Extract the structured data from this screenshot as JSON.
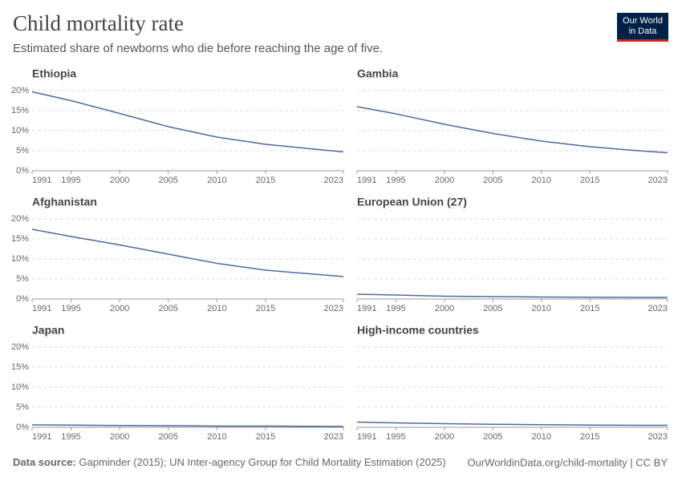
{
  "title": "Child mortality rate",
  "subtitle": "Estimated share of newborns who die before reaching the age of five.",
  "logo": {
    "line1": "Our World",
    "line2": "in Data"
  },
  "source_label": "Data source:",
  "source": "Gapminder (2015); UN Inter-agency Group for Child Mortality Estimation (2025)",
  "url": "OurWorldinData.org/child-mortality | CC BY",
  "chart_data": [
    {
      "type": "line",
      "title": "Ethiopia",
      "color": "#4c6a9c",
      "grid": true,
      "x": [
        1991,
        1995,
        2000,
        2005,
        2010,
        2015,
        2020,
        2023
      ],
      "values": [
        19.7,
        17.5,
        14.3,
        11.0,
        8.4,
        6.6,
        5.4,
        4.7
      ],
      "xlim": [
        1991,
        2023
      ],
      "xticks": [
        1991,
        1995,
        2000,
        2005,
        2010,
        2015,
        2023
      ],
      "ylim": [
        0,
        20
      ],
      "yticks": [
        {
          "value": 0,
          "label": "0%"
        },
        {
          "value": 5,
          "label": "5%"
        },
        {
          "value": 10,
          "label": "10%"
        },
        {
          "value": 15,
          "label": "15%"
        },
        {
          "value": 20,
          "label": "20%"
        }
      ]
    },
    {
      "type": "line",
      "title": "Gambia",
      "color": "#4c6a9c",
      "grid": true,
      "x": [
        1991,
        1995,
        2000,
        2005,
        2010,
        2015,
        2020,
        2023
      ],
      "values": [
        16.0,
        14.2,
        11.6,
        9.3,
        7.4,
        6.0,
        5.0,
        4.5
      ],
      "xlim": [
        1991,
        2023
      ],
      "xticks": [
        1991,
        1995,
        2000,
        2005,
        2010,
        2015,
        2023
      ],
      "ylim": [
        0,
        20
      ],
      "yticks": [
        0,
        5,
        10,
        15,
        20
      ]
    },
    {
      "type": "line",
      "title": "Afghanistan",
      "color": "#4c6a9c",
      "grid": true,
      "x": [
        1991,
        1995,
        2000,
        2005,
        2010,
        2015,
        2020,
        2023
      ],
      "values": [
        17.4,
        15.6,
        13.5,
        11.2,
        8.9,
        7.2,
        6.2,
        5.6
      ],
      "xlim": [
        1991,
        2023
      ],
      "xticks": [
        1991,
        1995,
        2000,
        2005,
        2010,
        2015,
        2023
      ],
      "ylim": [
        0,
        20
      ],
      "yticks": [
        {
          "value": 0,
          "label": "0%"
        },
        {
          "value": 5,
          "label": "5%"
        },
        {
          "value": 10,
          "label": "10%"
        },
        {
          "value": 15,
          "label": "15%"
        },
        {
          "value": 20,
          "label": "20%"
        }
      ]
    },
    {
      "type": "line",
      "title": "European Union (27)",
      "color": "#4c6a9c",
      "grid": true,
      "x": [
        1991,
        1995,
        2000,
        2005,
        2010,
        2015,
        2020,
        2023
      ],
      "values": [
        1.2,
        1.0,
        0.7,
        0.6,
        0.5,
        0.45,
        0.4,
        0.4
      ],
      "xlim": [
        1991,
        2023
      ],
      "xticks": [
        1991,
        1995,
        2000,
        2005,
        2010,
        2015,
        2023
      ],
      "ylim": [
        0,
        20
      ],
      "yticks": [
        0,
        5,
        10,
        15,
        20
      ]
    },
    {
      "type": "line",
      "title": "Japan",
      "color": "#4c6a9c",
      "grid": true,
      "x": [
        1991,
        1995,
        2000,
        2005,
        2010,
        2015,
        2020,
        2023
      ],
      "values": [
        0.6,
        0.55,
        0.45,
        0.4,
        0.3,
        0.3,
        0.25,
        0.2
      ],
      "xlim": [
        1991,
        2023
      ],
      "xticks": [
        1991,
        1995,
        2000,
        2005,
        2010,
        2015,
        2023
      ],
      "ylim": [
        0,
        20
      ],
      "yticks": [
        {
          "value": 0,
          "label": "0%"
        },
        {
          "value": 5,
          "label": "5%"
        },
        {
          "value": 10,
          "label": "10%"
        },
        {
          "value": 15,
          "label": "15%"
        },
        {
          "value": 20,
          "label": "20%"
        }
      ]
    },
    {
      "type": "line",
      "title": "High-income countries",
      "color": "#4c6a9c",
      "grid": true,
      "x": [
        1991,
        1995,
        2000,
        2005,
        2010,
        2015,
        2020,
        2023
      ],
      "values": [
        1.3,
        1.1,
        0.9,
        0.75,
        0.65,
        0.55,
        0.5,
        0.5
      ],
      "xlim": [
        1991,
        2023
      ],
      "xticks": [
        1991,
        1995,
        2000,
        2005,
        2010,
        2015,
        2023
      ],
      "ylim": [
        0,
        20
      ],
      "yticks": [
        0,
        5,
        10,
        15,
        20
      ]
    }
  ]
}
